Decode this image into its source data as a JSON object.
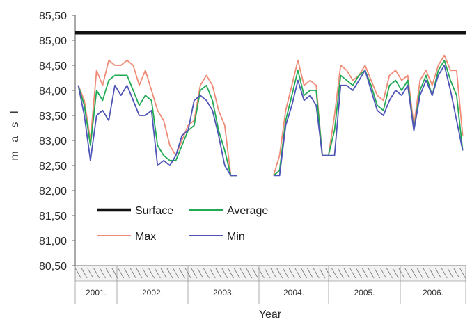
{
  "chart_data": {
    "type": "line",
    "title": "",
    "xlabel": "Year",
    "ylabel": "m a s l",
    "ylim": [
      80.5,
      85.5
    ],
    "ytick_labels": [
      "85,50",
      "85,00",
      "84,50",
      "84,00",
      "83,50",
      "83,00",
      "82,50",
      "82,00",
      "81,50",
      "81,00",
      "80,50"
    ],
    "year_labels": [
      "2001.",
      "2002.",
      "2003.",
      "2004.",
      "2005.",
      "2006."
    ],
    "legend_location": "lower-left",
    "grid": false,
    "colors": {
      "Surface": "#111111",
      "Max": "#ee8c78",
      "Average": "#22aa55",
      "Min": "#4f55b8"
    },
    "surface": 85.15,
    "series": [
      {
        "name": "Max",
        "values": [
          84.1,
          83.8,
          83.0,
          84.4,
          84.1,
          84.6,
          84.5,
          84.5,
          84.6,
          84.5,
          84.1,
          84.4,
          84.0,
          83.6,
          83.4,
          82.9,
          82.7,
          83.0,
          83.3,
          83.4,
          84.1,
          84.3,
          84.1,
          83.6,
          83.3,
          82.3,
          82.3,
          null,
          null,
          null,
          null,
          null,
          82.3,
          82.7,
          83.6,
          84.1,
          84.6,
          84.1,
          84.2,
          84.1,
          82.7,
          82.7,
          83.5,
          84.5,
          84.4,
          84.2,
          84.3,
          84.5,
          84.2,
          83.9,
          83.8,
          84.3,
          84.4,
          84.2,
          84.3,
          83.3,
          84.2,
          84.4,
          84.1,
          84.5,
          84.7,
          84.4,
          84.4,
          83.1
        ]
      },
      {
        "name": "Average",
        "values": [
          84.1,
          83.7,
          82.9,
          84.0,
          83.8,
          84.2,
          84.3,
          84.3,
          84.3,
          84.0,
          83.7,
          83.9,
          83.8,
          82.9,
          82.7,
          82.6,
          82.6,
          82.9,
          83.2,
          83.3,
          84.0,
          84.1,
          83.8,
          83.2,
          82.8,
          82.3,
          82.3,
          null,
          null,
          null,
          null,
          null,
          82.3,
          82.4,
          83.4,
          83.9,
          84.4,
          83.9,
          84.0,
          84.0,
          82.7,
          82.7,
          83.2,
          84.3,
          84.2,
          84.1,
          84.3,
          84.4,
          84.1,
          83.7,
          83.6,
          84.1,
          84.2,
          84.0,
          84.2,
          83.2,
          84.0,
          84.3,
          83.9,
          84.4,
          84.6,
          84.2,
          83.9,
          82.8
        ]
      },
      {
        "name": "Min",
        "values": [
          84.1,
          83.5,
          82.6,
          83.5,
          83.6,
          83.4,
          84.1,
          83.9,
          84.1,
          83.8,
          83.5,
          83.5,
          83.6,
          82.5,
          82.6,
          82.5,
          82.7,
          83.1,
          83.2,
          83.8,
          83.9,
          83.8,
          83.6,
          83.1,
          82.5,
          82.3,
          82.3,
          null,
          null,
          null,
          null,
          null,
          82.3,
          82.3,
          83.3,
          83.7,
          84.2,
          83.8,
          83.9,
          83.7,
          82.7,
          82.7,
          82.7,
          84.1,
          84.1,
          84.0,
          84.2,
          84.4,
          84.0,
          83.6,
          83.5,
          83.8,
          84.0,
          83.9,
          84.1,
          83.2,
          83.9,
          84.2,
          83.9,
          84.3,
          84.5,
          84.0,
          83.4,
          82.8
        ]
      }
    ],
    "legend": [
      {
        "label": "Surface",
        "series": "Surface"
      },
      {
        "label": "Average",
        "series": "Average"
      },
      {
        "label": "Max",
        "series": "Max"
      },
      {
        "label": "Min",
        "series": "Min"
      }
    ]
  }
}
